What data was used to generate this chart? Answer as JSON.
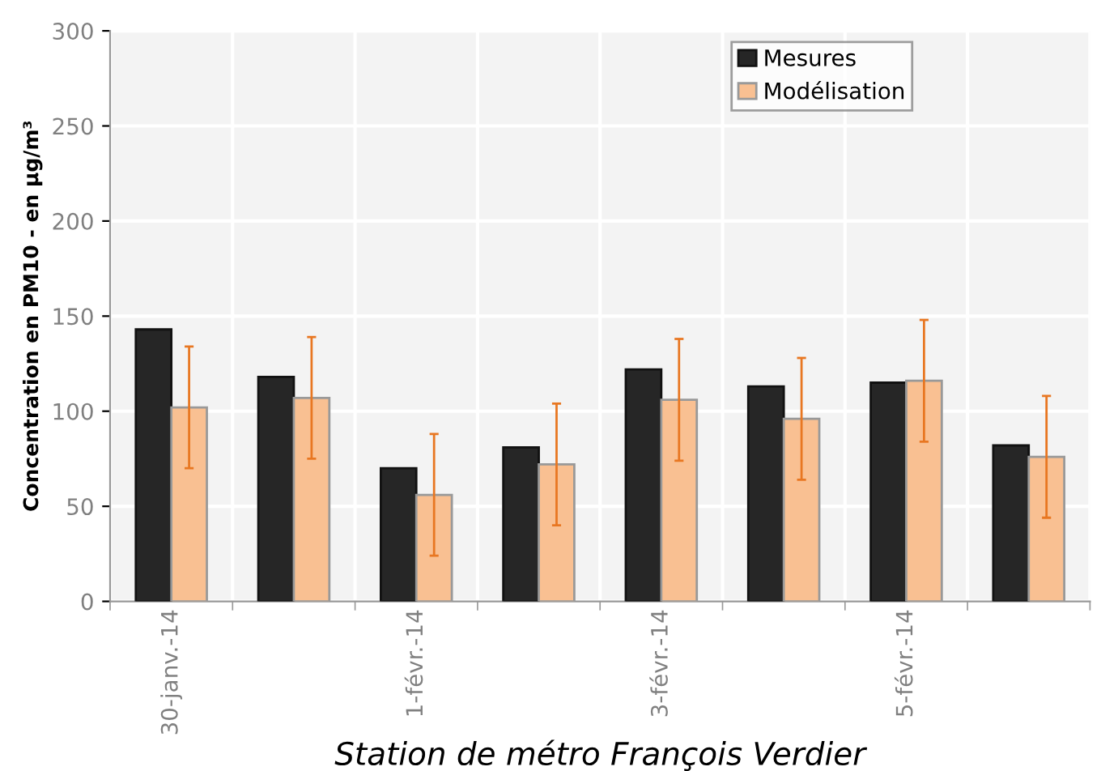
{
  "chart_data": {
    "type": "bar",
    "xlabel": "Station de métro François Verdier",
    "ylabel": "Concentration en PM10 - en µg/m³",
    "categories": [
      "30-janv.-14",
      null,
      "1-févr.-14",
      null,
      "3-févr.-14",
      null,
      "5-févr.-14",
      null
    ],
    "series": [
      {
        "name": "Mesures",
        "color": "#262626",
        "values": [
          143,
          118,
          70,
          81,
          122,
          113,
          115,
          82
        ]
      },
      {
        "name": "Modélisation",
        "color": "#f9c092",
        "values": [
          102,
          107,
          56,
          72,
          106,
          96,
          116,
          76
        ],
        "errors": [
          32,
          32,
          32,
          32,
          32,
          32,
          32,
          32
        ]
      }
    ],
    "ylim": [
      0,
      300
    ],
    "yticks": [
      0,
      50,
      100,
      150,
      200,
      250,
      300
    ],
    "grid": true,
    "legend": "top right"
  }
}
